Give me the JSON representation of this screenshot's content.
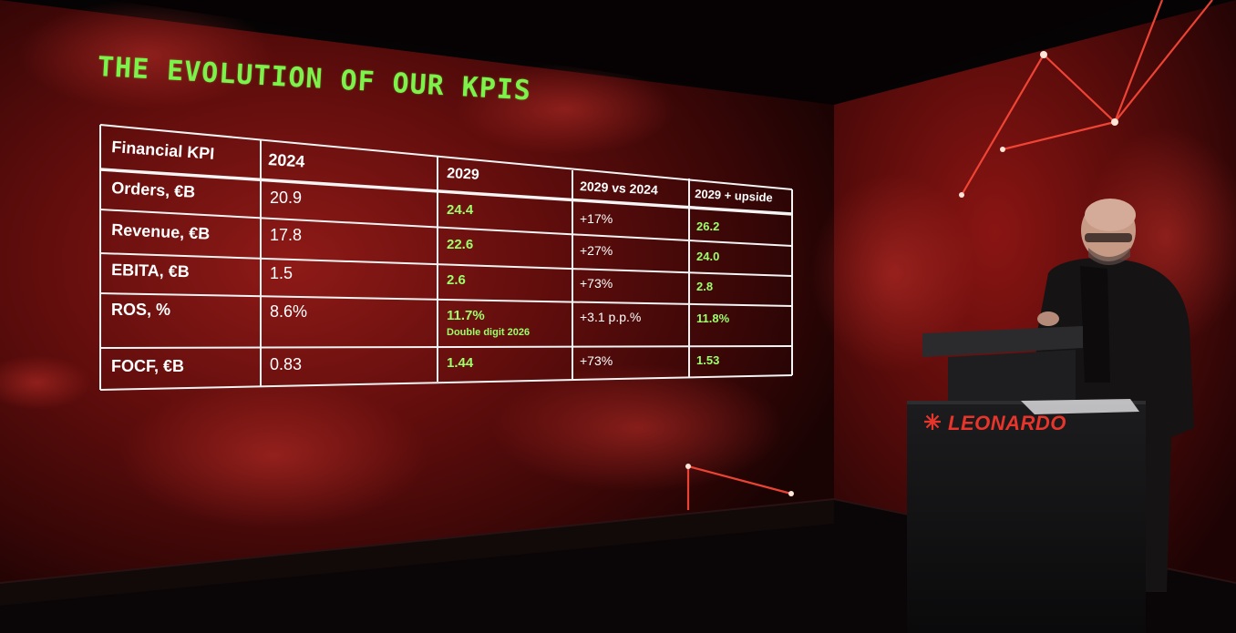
{
  "slide": {
    "title": "THE EVOLUTION OF OUR KPIS"
  },
  "table": {
    "headers": [
      "Financial KPI",
      "2024",
      "2029",
      "2029 vs 2024",
      "2029 + upside"
    ],
    "rows": [
      {
        "kpi": "Orders, €B",
        "y2024": "20.9",
        "y2029": "24.4",
        "note": "",
        "delta": "+17%",
        "upside": "26.2"
      },
      {
        "kpi": "Revenue, €B",
        "y2024": "17.8",
        "y2029": "22.6",
        "note": "",
        "delta": "+27%",
        "upside": "24.0"
      },
      {
        "kpi": "EBITA, €B",
        "y2024": "1.5",
        "y2029": "2.6",
        "note": "",
        "delta": "+73%",
        "upside": "2.8"
      },
      {
        "kpi": "ROS, %",
        "y2024": "8.6%",
        "y2029": "11.7%",
        "note": "Double digit 2026",
        "delta": "+3.1 p.p.%",
        "upside": "11.8%"
      },
      {
        "kpi": "FOCF, €B",
        "y2024": "0.83",
        "y2029": "1.44",
        "note": "",
        "delta": "+73%",
        "upside": "1.53"
      }
    ]
  },
  "podium": {
    "logo": "LEONARDO"
  },
  "colors": {
    "title_green": "#7cf24a",
    "value_green": "#9dff6a",
    "brand_red": "#e8352b",
    "wall_red": "#7a1010"
  }
}
